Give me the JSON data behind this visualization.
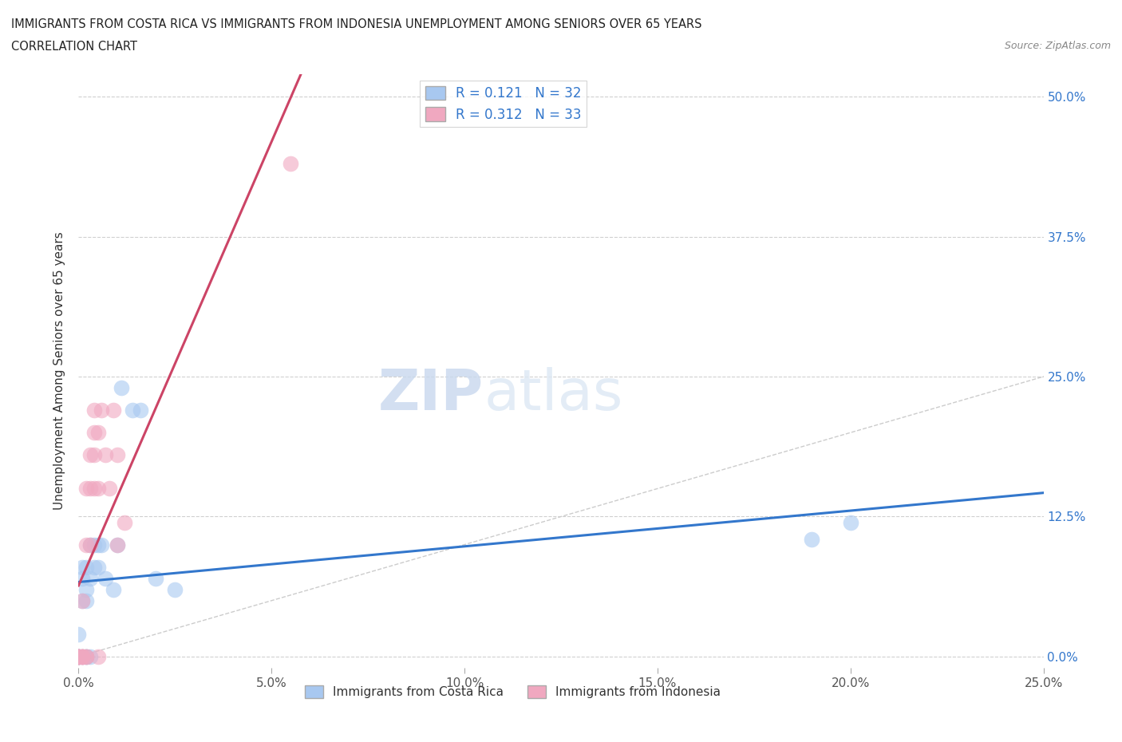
{
  "title_line1": "IMMIGRANTS FROM COSTA RICA VS IMMIGRANTS FROM INDONESIA UNEMPLOYMENT AMONG SENIORS OVER 65 YEARS",
  "title_line2": "CORRELATION CHART",
  "source": "Source: ZipAtlas.com",
  "ylabel": "Unemployment Among Seniors over 65 years",
  "legend_label_1": "Immigrants from Costa Rica",
  "legend_label_2": "Immigrants from Indonesia",
  "r1": 0.121,
  "n1": 32,
  "r2": 0.312,
  "n2": 33,
  "color1": "#a8c8f0",
  "color2": "#f0a8c0",
  "trendline1_color": "#3377cc",
  "trendline2_color": "#cc4466",
  "xmin": 0.0,
  "xmax": 0.25,
  "ymin": -0.01,
  "ymax": 0.52,
  "yticks": [
    0.0,
    0.125,
    0.25,
    0.375,
    0.5
  ],
  "ytick_labels": [
    "0.0%",
    "12.5%",
    "25.0%",
    "37.5%",
    "50.0%"
  ],
  "xticks": [
    0.0,
    0.05,
    0.1,
    0.15,
    0.2,
    0.25
  ],
  "xtick_labels": [
    "0.0%",
    "5.0%",
    "10.0%",
    "15.0%",
    "20.0%",
    "25.0%"
  ],
  "cr_x": [
    0.0,
    0.0,
    0.0,
    0.0,
    0.0,
    0.001,
    0.001,
    0.001,
    0.001,
    0.002,
    0.002,
    0.002,
    0.002,
    0.002,
    0.003,
    0.003,
    0.003,
    0.004,
    0.004,
    0.005,
    0.005,
    0.006,
    0.007,
    0.009,
    0.01,
    0.011,
    0.014,
    0.016,
    0.02,
    0.025,
    0.19,
    0.2
  ],
  "cr_y": [
    0.0,
    0.0,
    0.02,
    0.0,
    0.0,
    0.05,
    0.08,
    0.07,
    0.0,
    0.08,
    0.06,
    0.05,
    0.0,
    0.0,
    0.1,
    0.07,
    0.0,
    0.08,
    0.1,
    0.08,
    0.1,
    0.1,
    0.07,
    0.06,
    0.1,
    0.24,
    0.22,
    0.22,
    0.07,
    0.06,
    0.105,
    0.12
  ],
  "id_x": [
    0.0,
    0.0,
    0.0,
    0.0,
    0.0,
    0.0,
    0.001,
    0.001,
    0.001,
    0.001,
    0.001,
    0.002,
    0.002,
    0.002,
    0.002,
    0.003,
    0.003,
    0.003,
    0.004,
    0.004,
    0.004,
    0.004,
    0.005,
    0.005,
    0.005,
    0.006,
    0.007,
    0.008,
    0.009,
    0.01,
    0.01,
    0.012,
    0.055
  ],
  "id_y": [
    0.0,
    0.0,
    0.0,
    0.0,
    0.0,
    0.0,
    0.0,
    0.05,
    0.0,
    0.0,
    0.0,
    0.1,
    0.15,
    0.0,
    0.0,
    0.15,
    0.18,
    0.1,
    0.18,
    0.2,
    0.15,
    0.22,
    0.2,
    0.15,
    0.0,
    0.22,
    0.18,
    0.15,
    0.22,
    0.18,
    0.1,
    0.12,
    0.44
  ],
  "watermark_zip": "ZIP",
  "watermark_atlas": "atlas",
  "background_color": "#ffffff",
  "grid_color": "#d0d0d0"
}
